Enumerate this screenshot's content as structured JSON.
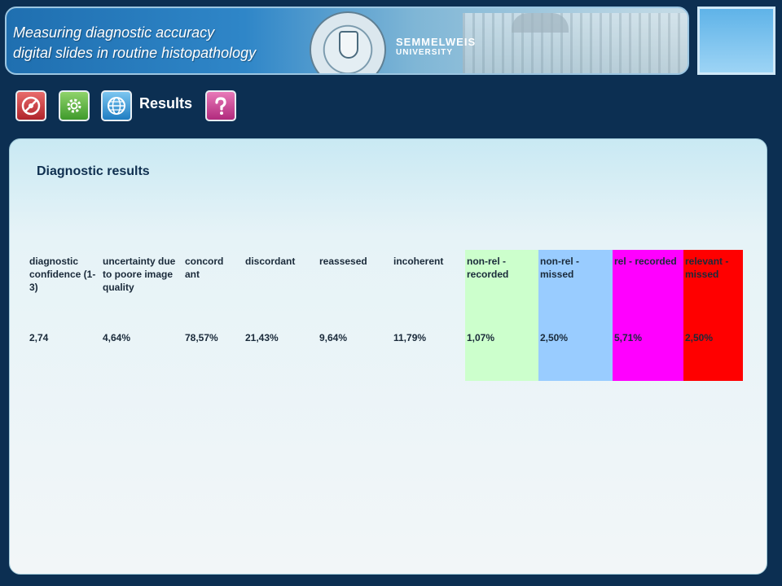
{
  "header": {
    "title_line1": "Measuring diagnostic accuracy",
    "title_line2": "digital slides in routine histopathology",
    "brand_name": "SEMMELWEIS",
    "brand_sub": "UNIVERSITY",
    "accent_color": "#2f86c8"
  },
  "toolbar": {
    "icons": [
      "disc-icon",
      "gear-icon",
      "globe-icon",
      "help-icon"
    ],
    "label": "Results"
  },
  "main": {
    "title": "Diagnostic results",
    "table": {
      "columns": [
        "diagnostic confidence (1-3)",
        "uncertainty due to poore image quality",
        "concord ant",
        "discordant",
        "reassesed",
        "incoherent",
        "non-rel - recorded",
        "non-rel - missed",
        "rel - recorded",
        "relevant - missed"
      ],
      "values": [
        "2,74",
        "4,64%",
        "78,57%",
        "21,43%",
        "9,64%",
        "11,79%",
        "1,07%",
        "2,50%",
        "5,71%",
        "2,50%"
      ],
      "highlight_colors": [
        "#ccffcc",
        "#99ccff",
        "#ff00ff",
        "#ff0000"
      ]
    }
  }
}
